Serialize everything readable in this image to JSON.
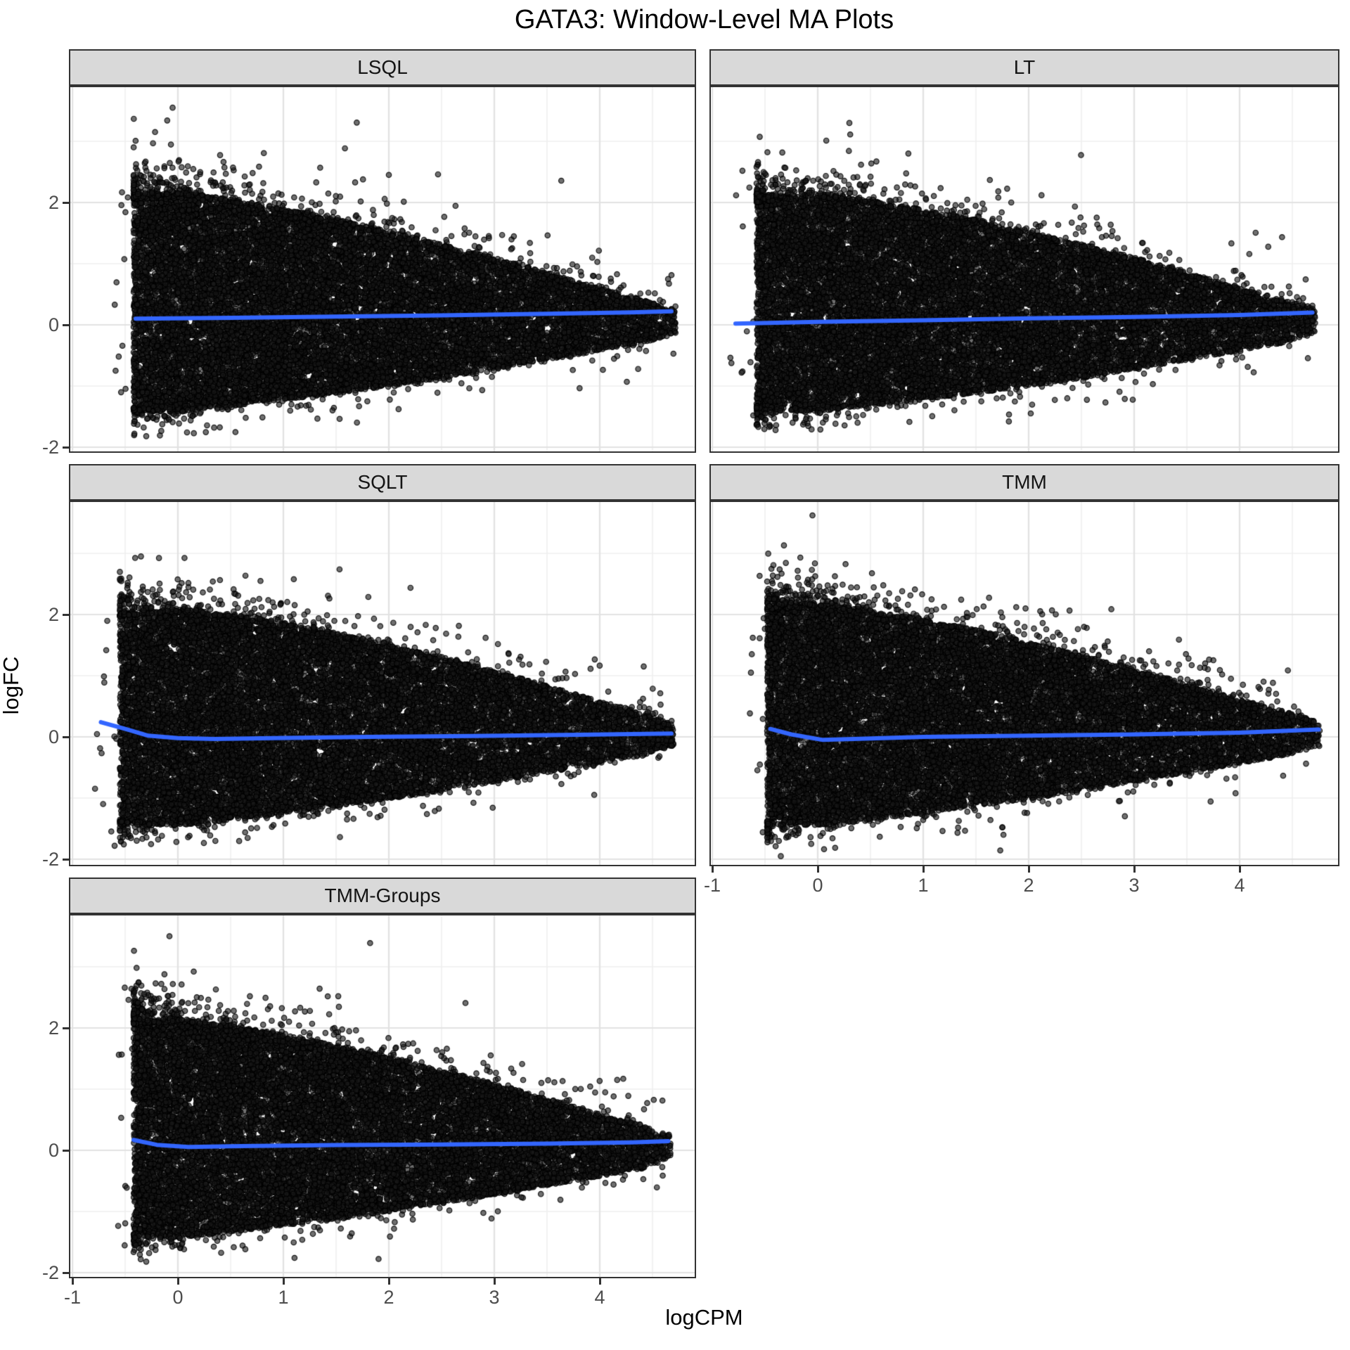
{
  "title": "GATA3: Window-Level MA Plots",
  "axes": {
    "x_label": "logCPM",
    "y_label": "logFC",
    "x_ticks": [
      -1,
      0,
      1,
      2,
      3,
      4
    ],
    "y_ticks": [
      -2,
      0,
      2
    ]
  },
  "styles": {
    "smooth_color": "#3366FF",
    "smooth_width": 6,
    "point_fill": "rgba(25,25,25,0.62)",
    "point_stroke": "rgba(0,0,0,0.85)",
    "point_radius": 3.7,
    "strip_bg": "#d9d9d9",
    "panel_bg": "#ffffff",
    "grid_major": "#e2e2e2",
    "grid_minor": "#efefef",
    "border_color": "#333333",
    "tick_label_color": "#4d4d4d"
  },
  "chart_data": [
    {
      "type": "scatter",
      "label": "LSQL",
      "row": 1,
      "col": 1,
      "x_range": [
        -1.03,
        4.91
      ],
      "y_range": [
        -2.1,
        3.9
      ],
      "cloud": {
        "seed": 11,
        "n_points": 15000,
        "x_edge": -0.42,
        "x_tip": 4.72,
        "left_stray": 0.18,
        "top_max": 3.55,
        "top_max_x": -0.05,
        "bottom_min": -1.82,
        "bottom_min_x": -0.3,
        "upper": [
          [
            -0.45,
            2.1
          ],
          [
            0,
            2.18
          ],
          [
            0.5,
            2.05
          ],
          [
            1,
            1.9
          ],
          [
            1.5,
            1.73
          ],
          [
            2,
            1.53
          ],
          [
            2.5,
            1.32
          ],
          [
            3,
            1.1
          ],
          [
            3.5,
            0.86
          ],
          [
            4,
            0.6
          ],
          [
            4.4,
            0.42
          ],
          [
            4.72,
            0.24
          ]
        ],
        "lower": [
          [
            -0.45,
            -1.4
          ],
          [
            0,
            -1.43
          ],
          [
            0.5,
            -1.33
          ],
          [
            1,
            -1.23
          ],
          [
            1.5,
            -1.12
          ],
          [
            2,
            -1.0
          ],
          [
            2.5,
            -0.87
          ],
          [
            3,
            -0.72
          ],
          [
            3.5,
            -0.57
          ],
          [
            4,
            -0.42
          ],
          [
            4.4,
            -0.3
          ],
          [
            4.72,
            -0.15
          ]
        ],
        "fringe": {
          "top_n": 380,
          "bottom_n": 190,
          "top_decay": 0.22,
          "bottom_decay": 0.15
        }
      },
      "smooth_line": [
        [
          -0.4,
          0.1
        ],
        [
          0.5,
          0.115
        ],
        [
          1.5,
          0.135
        ],
        [
          2.5,
          0.155
        ],
        [
          3.5,
          0.18
        ],
        [
          4.3,
          0.205
        ],
        [
          4.68,
          0.22
        ]
      ]
    },
    {
      "type": "scatter",
      "label": "LT",
      "row": 1,
      "col": 2,
      "x_range": [
        -1.03,
        4.95
      ],
      "y_range": [
        -2.1,
        3.9
      ],
      "cloud": {
        "seed": 22,
        "n_points": 15000,
        "x_edge": -0.58,
        "x_tip": 4.72,
        "left_stray": 0.25,
        "top_max": 3.3,
        "top_max_x": 0.3,
        "bottom_min": -1.72,
        "bottom_min_x": -0.4,
        "upper": [
          [
            -0.6,
            2.05
          ],
          [
            0,
            2.15
          ],
          [
            0.5,
            2.03
          ],
          [
            1,
            1.88
          ],
          [
            1.5,
            1.72
          ],
          [
            2,
            1.52
          ],
          [
            2.5,
            1.32
          ],
          [
            3,
            1.1
          ],
          [
            3.5,
            0.86
          ],
          [
            4,
            0.6
          ],
          [
            4.4,
            0.42
          ],
          [
            4.72,
            0.25
          ]
        ],
        "lower": [
          [
            -0.6,
            -1.38
          ],
          [
            0,
            -1.42
          ],
          [
            0.5,
            -1.32
          ],
          [
            1,
            -1.22
          ],
          [
            1.5,
            -1.11
          ],
          [
            2,
            -1.0
          ],
          [
            2.5,
            -0.87
          ],
          [
            3,
            -0.72
          ],
          [
            3.5,
            -0.57
          ],
          [
            4,
            -0.42
          ],
          [
            4.4,
            -0.3
          ],
          [
            4.72,
            -0.14
          ]
        ],
        "fringe": {
          "top_n": 380,
          "bottom_n": 190,
          "top_decay": 0.22,
          "bottom_decay": 0.15
        }
      },
      "smooth_line": [
        [
          -0.78,
          0.02
        ],
        [
          0,
          0.05
        ],
        [
          1,
          0.075
        ],
        [
          2,
          0.105
        ],
        [
          3,
          0.13
        ],
        [
          4,
          0.16
        ],
        [
          4.69,
          0.2
        ]
      ]
    },
    {
      "type": "scatter",
      "label": "SQLT",
      "row": 2,
      "col": 1,
      "x_range": [
        -1.03,
        4.91
      ],
      "y_range": [
        -2.1,
        3.9
      ],
      "cloud": {
        "seed": 33,
        "n_points": 15000,
        "x_edge": -0.55,
        "x_tip": 4.7,
        "left_stray": 0.25,
        "top_max": 2.95,
        "top_max_x": -0.35,
        "bottom_min": -1.78,
        "bottom_min_x": -0.6,
        "upper": [
          [
            -0.55,
            2.02
          ],
          [
            0,
            2.1
          ],
          [
            0.5,
            2.0
          ],
          [
            1,
            1.86
          ],
          [
            1.5,
            1.7
          ],
          [
            2,
            1.5
          ],
          [
            2.5,
            1.3
          ],
          [
            3,
            1.08
          ],
          [
            3.5,
            0.84
          ],
          [
            4,
            0.58
          ],
          [
            4.4,
            0.4
          ],
          [
            4.7,
            0.22
          ]
        ],
        "lower": [
          [
            -0.55,
            -1.42
          ],
          [
            0,
            -1.45
          ],
          [
            0.5,
            -1.35
          ],
          [
            1,
            -1.24
          ],
          [
            1.5,
            -1.13
          ],
          [
            2,
            -1.01
          ],
          [
            2.5,
            -0.88
          ],
          [
            3,
            -0.73
          ],
          [
            3.5,
            -0.58
          ],
          [
            4,
            -0.43
          ],
          [
            4.4,
            -0.3
          ],
          [
            4.7,
            -0.14
          ]
        ],
        "fringe": {
          "top_n": 360,
          "bottom_n": 190,
          "top_decay": 0.2,
          "bottom_decay": 0.15
        }
      },
      "smooth_line": [
        [
          -0.73,
          0.24
        ],
        [
          -0.5,
          0.13
        ],
        [
          -0.28,
          0.02
        ],
        [
          0,
          -0.02
        ],
        [
          0.35,
          -0.035
        ],
        [
          0.9,
          -0.02
        ],
        [
          1.8,
          0.0
        ],
        [
          2.8,
          0.015
        ],
        [
          3.8,
          0.035
        ],
        [
          4.68,
          0.055
        ]
      ]
    },
    {
      "type": "scatter",
      "label": "TMM",
      "row": 2,
      "col": 2,
      "x_range": [
        -1.03,
        4.95
      ],
      "y_range": [
        -2.1,
        3.9
      ],
      "cloud": {
        "seed": 44,
        "n_points": 15000,
        "x_edge": -0.48,
        "x_tip": 4.76,
        "left_stray": 0.18,
        "top_max": 3.62,
        "top_max_x": -0.05,
        "bottom_min": -1.95,
        "bottom_min_x": -0.35,
        "upper": [
          [
            -0.5,
            2.12
          ],
          [
            0,
            2.2
          ],
          [
            0.5,
            2.07
          ],
          [
            1,
            1.92
          ],
          [
            1.5,
            1.75
          ],
          [
            2,
            1.55
          ],
          [
            2.5,
            1.33
          ],
          [
            3,
            1.11
          ],
          [
            3.5,
            0.87
          ],
          [
            4,
            0.61
          ],
          [
            4.4,
            0.43
          ],
          [
            4.76,
            0.24
          ]
        ],
        "lower": [
          [
            -0.5,
            -1.42
          ],
          [
            0,
            -1.45
          ],
          [
            0.5,
            -1.35
          ],
          [
            1,
            -1.24
          ],
          [
            1.5,
            -1.13
          ],
          [
            2,
            -1.01
          ],
          [
            2.5,
            -0.88
          ],
          [
            3,
            -0.73
          ],
          [
            3.5,
            -0.58
          ],
          [
            4,
            -0.43
          ],
          [
            4.4,
            -0.31
          ],
          [
            4.76,
            -0.15
          ]
        ],
        "fringe": {
          "top_n": 400,
          "bottom_n": 200,
          "top_decay": 0.22,
          "bottom_decay": 0.16
        }
      },
      "smooth_line": [
        [
          -0.45,
          0.13
        ],
        [
          -0.25,
          0.04
        ],
        [
          0.05,
          -0.05
        ],
        [
          0.45,
          -0.03
        ],
        [
          1,
          0.0
        ],
        [
          2,
          0.02
        ],
        [
          3,
          0.04
        ],
        [
          4,
          0.07
        ],
        [
          4.75,
          0.12
        ]
      ]
    },
    {
      "type": "scatter",
      "label": "TMM-Groups",
      "row": 3,
      "col": 1,
      "x_range": [
        -1.03,
        4.91
      ],
      "y_range": [
        -2.1,
        3.9
      ],
      "cloud": {
        "seed": 55,
        "n_points": 15000,
        "x_edge": -0.42,
        "x_tip": 4.67,
        "left_stray": 0.15,
        "top_max": 3.5,
        "top_max_x": -0.08,
        "bottom_min": -1.82,
        "bottom_min_x": -0.3,
        "upper": [
          [
            -0.45,
            2.1
          ],
          [
            0,
            2.17
          ],
          [
            0.5,
            2.04
          ],
          [
            1,
            1.89
          ],
          [
            1.5,
            1.72
          ],
          [
            2,
            1.52
          ],
          [
            2.5,
            1.31
          ],
          [
            3,
            1.09
          ],
          [
            3.5,
            0.85
          ],
          [
            4,
            0.59
          ],
          [
            4.4,
            0.41
          ],
          [
            4.67,
            0.23
          ]
        ],
        "lower": [
          [
            -0.45,
            -1.4
          ],
          [
            0,
            -1.43
          ],
          [
            0.5,
            -1.33
          ],
          [
            1,
            -1.23
          ],
          [
            1.5,
            -1.12
          ],
          [
            2,
            -1.0
          ],
          [
            2.5,
            -0.87
          ],
          [
            3,
            -0.72
          ],
          [
            3.5,
            -0.57
          ],
          [
            4,
            -0.42
          ],
          [
            4.4,
            -0.3
          ],
          [
            4.67,
            -0.14
          ]
        ],
        "fringe": {
          "top_n": 380,
          "bottom_n": 190,
          "top_decay": 0.22,
          "bottom_decay": 0.15
        }
      },
      "smooth_line": [
        [
          -0.42,
          0.17
        ],
        [
          -0.2,
          0.09
        ],
        [
          0.1,
          0.055
        ],
        [
          0.6,
          0.07
        ],
        [
          1.5,
          0.085
        ],
        [
          2.5,
          0.095
        ],
        [
          3.5,
          0.11
        ],
        [
          4.3,
          0.13
        ],
        [
          4.65,
          0.15
        ]
      ]
    }
  ]
}
